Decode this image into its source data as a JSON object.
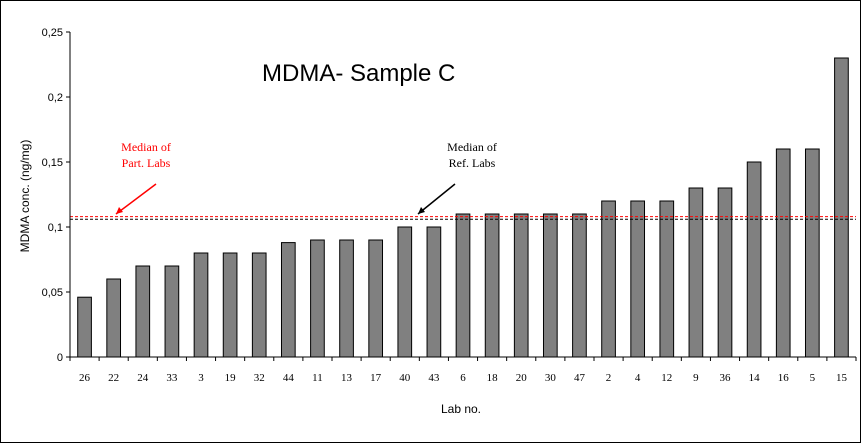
{
  "chart_data": {
    "type": "bar",
    "title": "MDMA- Sample C",
    "xlabel": "Lab no.",
    "ylabel": "MDMA conc. (ng/mg)",
    "ylim": [
      0,
      0.25
    ],
    "yticks": [
      "0",
      "0,05",
      "0,1",
      "0,15",
      "0,2",
      "0,25"
    ],
    "categories": [
      "26",
      "22",
      "24",
      "33",
      "3",
      "19",
      "32",
      "44",
      "11",
      "13",
      "17",
      "40",
      "43",
      "6",
      "18",
      "20",
      "30",
      "47",
      "2",
      "4",
      "12",
      "9",
      "36",
      "14",
      "16",
      "5",
      "15"
    ],
    "values": [
      0.046,
      0.06,
      0.07,
      0.07,
      0.08,
      0.08,
      0.08,
      0.088,
      0.09,
      0.09,
      0.09,
      0.1,
      0.1,
      0.11,
      0.11,
      0.11,
      0.11,
      0.11,
      0.12,
      0.12,
      0.12,
      0.13,
      0.13,
      0.15,
      0.16,
      0.16,
      0.23
    ],
    "bar_color": "#808080",
    "grid": false,
    "reference_lines": [
      {
        "name": "Median of Part. Labs",
        "value": 0.108,
        "color": "#ff0000"
      },
      {
        "name": "Median of Ref. Labs",
        "value": 0.106,
        "color": "#000000"
      }
    ],
    "annotations": [
      {
        "line1": "Median of",
        "line2": "Part. Labs",
        "color": "#ff0000"
      },
      {
        "line1": "Median of",
        "line2": "Ref. Labs",
        "color": "#000000"
      }
    ]
  }
}
